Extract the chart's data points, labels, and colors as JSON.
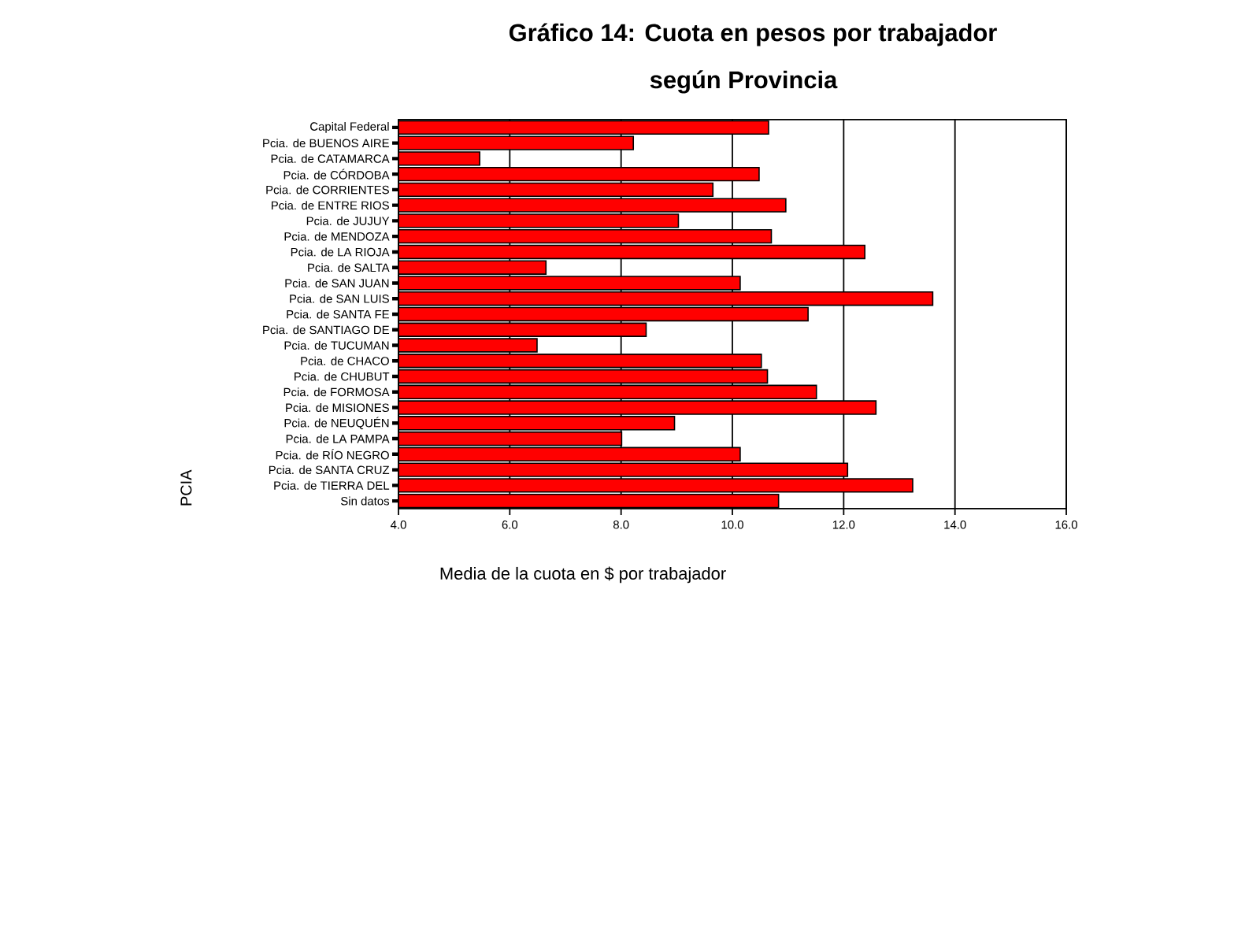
{
  "chart_data": {
    "type": "bar",
    "orientation": "horizontal",
    "title": "Gráfico 14: Cuota en pesos por trabajador",
    "subtitle": "según Provincia",
    "xlabel": "Media de la cuota en $ por trabajador",
    "ylabel": "PCIA",
    "categories": [
      "Capital Federal",
      "Pcia. de BUENOS AIRE",
      "Pcia. de CATAMARCA",
      "Pcia. de CÓRDOBA",
      "Pcia. de CORRIENTES",
      "Pcia. de ENTRE RIOS",
      "Pcia. de JUJUY",
      "Pcia. de MENDOZA",
      "Pcia. de LA RIOJA",
      "Pcia. de SALTA",
      "Pcia. de SAN JUAN",
      "Pcia. de SAN LUIS",
      "Pcia. de SANTA FE",
      "Pcia. de SANTIAGO DE",
      "Pcia. de TUCUMAN",
      "Pcia. de CHACO",
      "Pcia. de CHUBUT",
      "Pcia. de FORMOSA",
      "Pcia. de MISIONES",
      "Pcia. de NEUQUÉN",
      "Pcia. de LA PAMPA",
      "Pcia. de RÍO NEGRO",
      "Pcia. de SANTA CRUZ",
      "Pcia. de TIERRA DEL",
      "Sin datos"
    ],
    "values": [
      10.65,
      8.22,
      5.46,
      10.48,
      9.65,
      10.96,
      9.03,
      10.7,
      12.38,
      6.65,
      10.14,
      13.6,
      11.36,
      8.45,
      6.49,
      10.52,
      10.63,
      11.51,
      12.58,
      8.96,
      8.01,
      10.14,
      12.07,
      13.24,
      10.83
    ],
    "color": "#ff0000",
    "xlim": [
      4,
      16
    ],
    "xticks": [
      {
        "value": 4,
        "label": "4.0"
      },
      {
        "value": 6,
        "label": "6.0"
      },
      {
        "value": 8,
        "label": "8.0"
      },
      {
        "value": 10,
        "label": "10.0"
      },
      {
        "value": 12,
        "label": "12.0"
      },
      {
        "value": 14,
        "label": "14.0"
      },
      {
        "value": 16,
        "label": "16.0"
      }
    ],
    "grid": "x"
  }
}
